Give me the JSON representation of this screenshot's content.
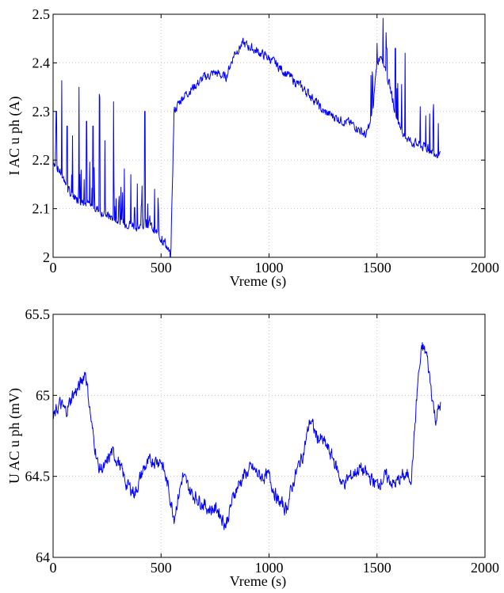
{
  "line_color": "#0000ff",
  "chart_data": [
    {
      "type": "line",
      "xlabel": "Vreme (s)",
      "ylabel": "I AC u ph (A)",
      "xlim": [
        0,
        2000
      ],
      "ylim": [
        2,
        2.5
      ],
      "xticks": [
        "0",
        "500",
        "1000",
        "1500",
        "2000"
      ],
      "yticks": [
        "2",
        "2.1",
        "2.2",
        "2.3",
        "2.4",
        "2.5"
      ],
      "grid": true,
      "series": [
        {
          "x": [
            0,
            40,
            80,
            120,
            160,
            200,
            240,
            280,
            320,
            360,
            400,
            440,
            480,
            520,
            545,
            560,
            600,
            650,
            700,
            750,
            800,
            840,
            880,
            920,
            960,
            1000,
            1050,
            1100,
            1150,
            1200,
            1250,
            1300,
            1350,
            1400,
            1450,
            1480,
            1500,
            1520,
            1560,
            1600,
            1650,
            1700,
            1750,
            1795
          ],
          "y": [
            2.2,
            2.17,
            2.13,
            2.12,
            2.11,
            2.1,
            2.09,
            2.08,
            2.07,
            2.07,
            2.06,
            2.07,
            2.05,
            2.03,
            2.0,
            2.3,
            2.33,
            2.35,
            2.37,
            2.38,
            2.37,
            2.42,
            2.44,
            2.43,
            2.42,
            2.41,
            2.39,
            2.37,
            2.35,
            2.33,
            2.3,
            2.29,
            2.28,
            2.27,
            2.25,
            2.3,
            2.4,
            2.42,
            2.35,
            2.27,
            2.24,
            2.23,
            2.22,
            2.21
          ]
        }
      ],
      "spikes": [
        {
          "x": 15,
          "y": 2.3
        },
        {
          "x": 40,
          "y": 2.28
        },
        {
          "x": 65,
          "y": 2.27
        },
        {
          "x": 90,
          "y": 2.25
        },
        {
          "x": 120,
          "y": 2.35
        },
        {
          "x": 155,
          "y": 2.28
        },
        {
          "x": 185,
          "y": 2.27
        },
        {
          "x": 215,
          "y": 2.33
        },
        {
          "x": 240,
          "y": 2.24
        },
        {
          "x": 280,
          "y": 2.32
        },
        {
          "x": 330,
          "y": 2.16
        },
        {
          "x": 360,
          "y": 2.17
        },
        {
          "x": 425,
          "y": 2.3
        },
        {
          "x": 470,
          "y": 2.14
        },
        {
          "x": 1500,
          "y": 2.44
        },
        {
          "x": 1545,
          "y": 2.43
        },
        {
          "x": 1585,
          "y": 2.43
        },
        {
          "x": 1630,
          "y": 2.42
        },
        {
          "x": 1700,
          "y": 2.31
        },
        {
          "x": 1760,
          "y": 2.3
        }
      ]
    },
    {
      "type": "line",
      "xlabel": "Vreme (s)",
      "ylabel": "U AC u ph (mV)",
      "xlim": [
        0,
        2000
      ],
      "ylim": [
        64,
        65.5
      ],
      "xticks": [
        "0",
        "500",
        "1000",
        "1500",
        "2000"
      ],
      "yticks": [
        "64",
        "64.5",
        "65",
        "65.5"
      ],
      "grid": true,
      "series": [
        {
          "x": [
            0,
            30,
            60,
            90,
            120,
            150,
            180,
            210,
            240,
            270,
            300,
            340,
            380,
            420,
            460,
            500,
            530,
            560,
            600,
            640,
            680,
            720,
            760,
            800,
            840,
            880,
            920,
            960,
            1000,
            1040,
            1080,
            1120,
            1160,
            1190,
            1220,
            1260,
            1300,
            1340,
            1380,
            1420,
            1460,
            1500,
            1540,
            1580,
            1620,
            1660,
            1690,
            1710,
            1730,
            1750,
            1770,
            1795
          ],
          "y": [
            64.85,
            64.95,
            64.9,
            65.0,
            65.05,
            65.15,
            64.8,
            64.55,
            64.55,
            64.65,
            64.6,
            64.45,
            64.4,
            64.55,
            64.6,
            64.6,
            64.45,
            64.25,
            64.5,
            64.4,
            64.35,
            64.3,
            64.3,
            64.2,
            64.4,
            64.5,
            64.55,
            64.5,
            64.5,
            64.35,
            64.3,
            64.5,
            64.65,
            64.85,
            64.75,
            64.7,
            64.6,
            64.45,
            64.5,
            64.55,
            64.5,
            64.45,
            64.5,
            64.45,
            64.5,
            64.5,
            65.1,
            65.3,
            65.25,
            65.05,
            64.85,
            64.95
          ]
        }
      ]
    }
  ]
}
